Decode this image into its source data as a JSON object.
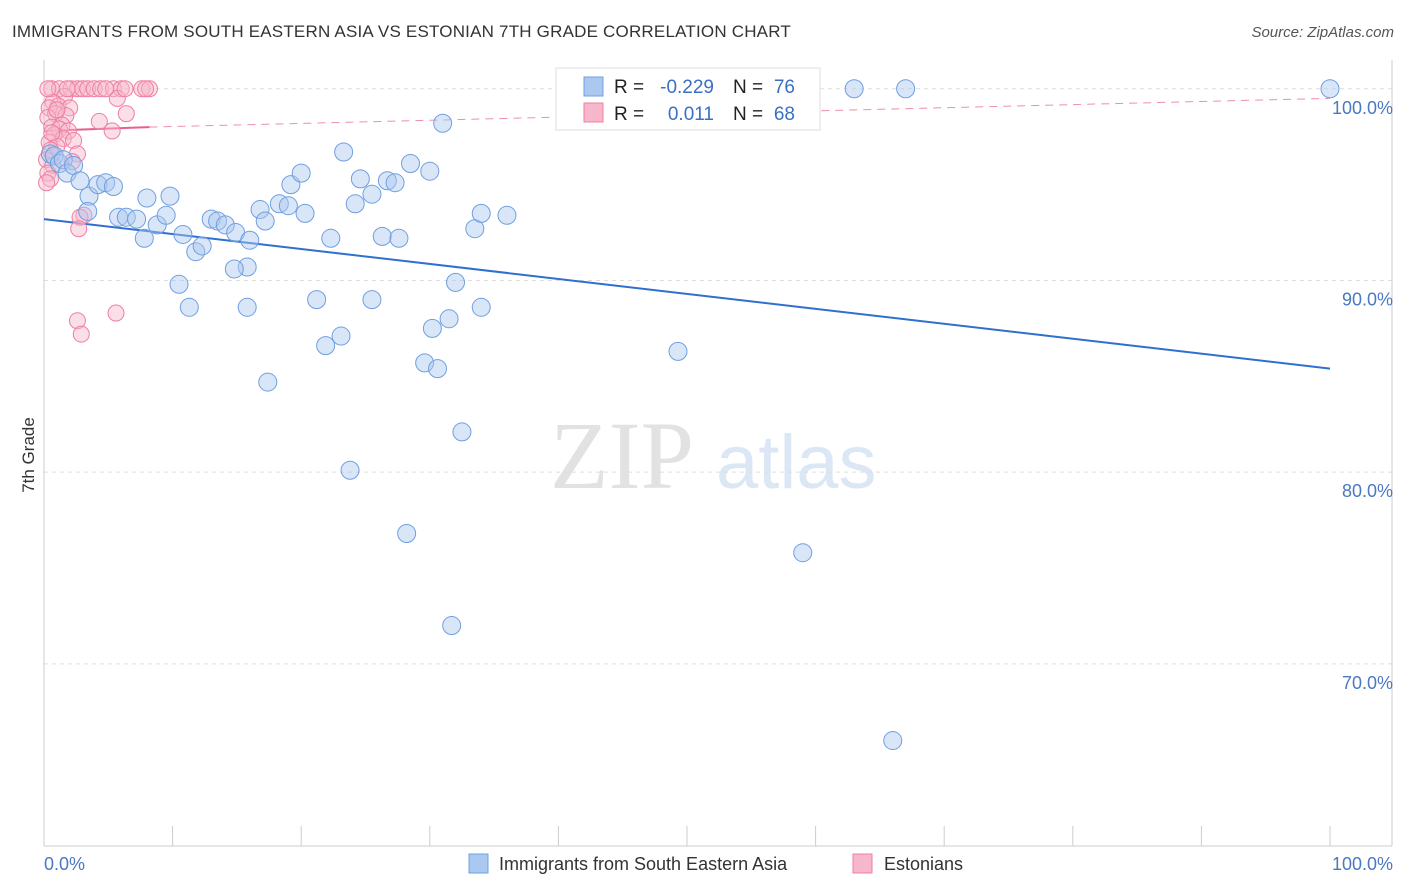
{
  "header": {
    "title": "IMMIGRANTS FROM SOUTH EASTERN ASIA VS ESTONIAN 7TH GRADE CORRELATION CHART",
    "source": "Source: ZipAtlas.com"
  },
  "watermark": {
    "zip": "ZIP",
    "atlas": "atlas"
  },
  "colors": {
    "blue_fill": "#aac8f0",
    "blue_stroke": "#6f9fe0",
    "blue_line": "#2f6fd0",
    "pink_fill": "#f7b7cb",
    "pink_stroke": "#ef7fa1",
    "pink_line": "#e8608a",
    "tick_text": "#4a78c2",
    "grid": "#dddddd"
  },
  "stats": {
    "r_label": "R =",
    "n_label": "N =",
    "rows": [
      {
        "r": "-0.229",
        "n": "76"
      },
      {
        "r": "0.011",
        "n": "68"
      }
    ]
  },
  "chart_data": {
    "type": "scatter",
    "title": "IMMIGRANTS FROM SOUTH EASTERN ASIA VS ESTONIAN 7TH GRADE CORRELATION CHART",
    "xlabel": "",
    "ylabel": "7th Grade",
    "xlim": [
      0,
      100
    ],
    "ylim": [
      60.5,
      101.5
    ],
    "x_tick_labels": [
      "0.0%",
      "100.0%"
    ],
    "y_ticks": [
      70,
      80,
      90,
      100
    ],
    "y_tick_labels": [
      "70.0%",
      "80.0%",
      "90.0%",
      "100.0%"
    ],
    "grid": true,
    "legend_position": "bottom",
    "series": [
      {
        "name": "Immigrants from South Eastern Asia",
        "color": "#6f9fe0",
        "trend": {
          "x": [
            0,
            100
          ],
          "y": [
            93.2,
            85.4
          ]
        },
        "points": [
          [
            0.5,
            96.6
          ],
          [
            0.8,
            96.5
          ],
          [
            1.2,
            96.1
          ],
          [
            1.5,
            96.3
          ],
          [
            1.8,
            95.6
          ],
          [
            2.3,
            96.0
          ],
          [
            2.8,
            95.2
          ],
          [
            3.5,
            94.4
          ],
          [
            4.2,
            95.0
          ],
          [
            4.8,
            95.1
          ],
          [
            5.4,
            94.9
          ],
          [
            3.4,
            93.6
          ],
          [
            5.8,
            93.3
          ],
          [
            6.4,
            93.3
          ],
          [
            7.2,
            93.2
          ],
          [
            8.0,
            94.3
          ],
          [
            8.8,
            92.9
          ],
          [
            9.5,
            93.4
          ],
          [
            9.8,
            94.4
          ],
          [
            7.8,
            92.2
          ],
          [
            10.8,
            92.4
          ],
          [
            11.8,
            91.5
          ],
          [
            12.3,
            91.8
          ],
          [
            13.0,
            93.2
          ],
          [
            13.5,
            93.1
          ],
          [
            14.1,
            92.9
          ],
          [
            14.9,
            92.5
          ],
          [
            15.8,
            90.7
          ],
          [
            14.8,
            90.6
          ],
          [
            16.0,
            92.1
          ],
          [
            16.8,
            93.7
          ],
          [
            17.2,
            93.1
          ],
          [
            18.3,
            94.0
          ],
          [
            19.0,
            93.9
          ],
          [
            19.2,
            95.0
          ],
          [
            20.0,
            95.6
          ],
          [
            20.3,
            93.5
          ],
          [
            22.3,
            92.2
          ],
          [
            23.3,
            96.7
          ],
          [
            24.2,
            94.0
          ],
          [
            24.6,
            95.3
          ],
          [
            25.5,
            94.5
          ],
          [
            26.3,
            92.3
          ],
          [
            26.7,
            95.2
          ],
          [
            27.3,
            95.1
          ],
          [
            27.6,
            92.2
          ],
          [
            28.5,
            96.1
          ],
          [
            30.0,
            95.7
          ],
          [
            31.0,
            98.2
          ],
          [
            33.5,
            92.7
          ],
          [
            34.0,
            93.5
          ],
          [
            36.0,
            93.4
          ],
          [
            10.5,
            89.8
          ],
          [
            11.3,
            88.6
          ],
          [
            15.8,
            88.6
          ],
          [
            21.2,
            89.0
          ],
          [
            25.5,
            89.0
          ],
          [
            30.2,
            87.5
          ],
          [
            31.5,
            88.0
          ],
          [
            32.0,
            89.9
          ],
          [
            34.0,
            88.6
          ],
          [
            21.9,
            86.6
          ],
          [
            23.1,
            87.1
          ],
          [
            29.6,
            85.7
          ],
          [
            30.6,
            85.4
          ],
          [
            17.4,
            84.7
          ],
          [
            49.3,
            86.3
          ],
          [
            32.5,
            82.1
          ],
          [
            23.8,
            80.1
          ],
          [
            28.2,
            76.8
          ],
          [
            59.0,
            75.8
          ],
          [
            31.7,
            72.0
          ],
          [
            66.0,
            66.0
          ],
          [
            42.0,
            100.0
          ],
          [
            63.0,
            100.0
          ],
          [
            67.0,
            100.0
          ],
          [
            100.0,
            100.0
          ]
        ]
      },
      {
        "name": "Estonians",
        "color": "#ef7fa1",
        "trend": {
          "x": [
            0,
            8.2
          ],
          "y": [
            97.8,
            98.0
          ]
        },
        "trend_extended": {
          "x": [
            8.2,
            100
          ],
          "y": [
            98.0,
            99.5
          ]
        },
        "points": [
          [
            0.6,
            100.0
          ],
          [
            1.2,
            100.0
          ],
          [
            2.1,
            100.0
          ],
          [
            2.6,
            100.0
          ],
          [
            3.0,
            100.0
          ],
          [
            3.4,
            100.0
          ],
          [
            3.9,
            100.0
          ],
          [
            4.4,
            100.0
          ],
          [
            5.4,
            100.0
          ],
          [
            6.0,
            100.0
          ],
          [
            7.6,
            100.0
          ],
          [
            8.2,
            100.0
          ],
          [
            1.6,
            99.6
          ],
          [
            0.7,
            99.3
          ],
          [
            1.1,
            99.1
          ],
          [
            2.0,
            99.0
          ],
          [
            0.4,
            99.0
          ],
          [
            5.7,
            99.5
          ],
          [
            0.9,
            98.7
          ],
          [
            1.7,
            98.6
          ],
          [
            0.3,
            98.5
          ],
          [
            6.4,
            98.7
          ],
          [
            4.3,
            98.3
          ],
          [
            1.4,
            98.1
          ],
          [
            0.6,
            98.0
          ],
          [
            1.2,
            97.9
          ],
          [
            1.9,
            97.8
          ],
          [
            5.3,
            97.8
          ],
          [
            0.8,
            97.6
          ],
          [
            1.5,
            97.4
          ],
          [
            2.3,
            97.3
          ],
          [
            0.4,
            97.2
          ],
          [
            1.0,
            97.0
          ],
          [
            0.5,
            96.8
          ],
          [
            2.6,
            96.6
          ],
          [
            0.2,
            96.3
          ],
          [
            0.7,
            96.0
          ],
          [
            0.3,
            95.6
          ],
          [
            0.5,
            95.3
          ],
          [
            0.2,
            95.1
          ],
          [
            3.1,
            93.4
          ],
          [
            2.8,
            93.3
          ],
          [
            2.7,
            92.7
          ],
          [
            5.6,
            88.3
          ],
          [
            2.6,
            87.9
          ],
          [
            2.9,
            87.2
          ],
          [
            0.3,
            100.0
          ],
          [
            1.8,
            100.0
          ],
          [
            4.8,
            100.0
          ],
          [
            6.3,
            100.0
          ],
          [
            7.9,
            100.0
          ],
          [
            1.0,
            98.9
          ],
          [
            0.6,
            97.7
          ],
          [
            2.2,
            96.2
          ]
        ]
      }
    ],
    "legend": [
      "Immigrants from South Eastern Asia",
      "Estonians"
    ]
  }
}
